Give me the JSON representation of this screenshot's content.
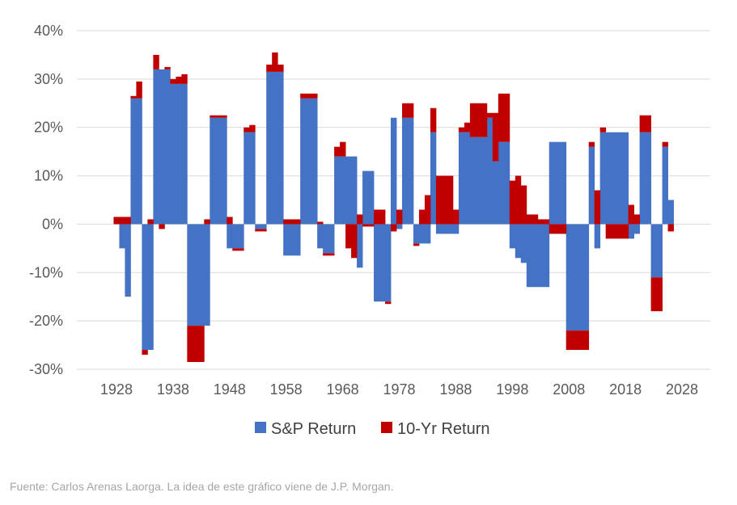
{
  "chart_data": {
    "type": "bar",
    "stacked": true,
    "grid": true,
    "legend_position": "bottom",
    "ylim": [
      -30,
      40
    ],
    "xlim": [
      1921,
      2033
    ],
    "yticks": [
      -30,
      -20,
      -10,
      0,
      10,
      20,
      30,
      40
    ],
    "ytick_labels": [
      "-30%",
      "-20%",
      "-10%",
      "0%",
      "10%",
      "20%",
      "30%",
      "40%"
    ],
    "xticks": [
      1928,
      1938,
      1948,
      1958,
      1968,
      1978,
      1988,
      1998,
      2008,
      2018,
      2028
    ],
    "xtick_labels": [
      "1928",
      "1938",
      "1948",
      "1958",
      "1968",
      "1978",
      "1988",
      "1998",
      "2008",
      "2018",
      "2028"
    ],
    "x": [
      1928,
      1929,
      1930,
      1931,
      1932,
      1933,
      1934,
      1935,
      1936,
      1937,
      1938,
      1939,
      1940,
      1941,
      1942,
      1943,
      1944,
      1945,
      1946,
      1947,
      1948,
      1949,
      1950,
      1951,
      1952,
      1953,
      1954,
      1955,
      1956,
      1957,
      1958,
      1959,
      1960,
      1961,
      1962,
      1963,
      1964,
      1965,
      1966,
      1967,
      1968,
      1969,
      1970,
      1971,
      1972,
      1973,
      1974,
      1975,
      1976,
      1977,
      1978,
      1979,
      1980,
      1981,
      1982,
      1983,
      1984,
      1985,
      1986,
      1987,
      1988,
      1989,
      1990,
      1991,
      1992,
      1993,
      1994,
      1995,
      1996,
      1997,
      1998,
      1999,
      2000,
      2001,
      2002,
      2003,
      2004,
      2005,
      2006,
      2007,
      2008,
      2009,
      2010,
      2011,
      2012,
      2013,
      2014,
      2015,
      2016,
      2017,
      2018,
      2019,
      2020,
      2021,
      2022,
      2023,
      2024,
      2025,
      2026
    ],
    "series": [
      {
        "name": "S&P Return",
        "color": "#4472c4",
        "values": [
          0,
          -5,
          -15,
          26,
          26,
          -26,
          -26,
          32,
          32,
          32,
          29,
          29,
          29,
          -21,
          -21,
          -21,
          -21,
          22,
          22,
          22,
          -5,
          -5,
          -5,
          19,
          19,
          -1,
          -1,
          31.5,
          31.5,
          31.5,
          -6.5,
          -6.5,
          -6.5,
          26,
          26,
          26,
          -5,
          -6,
          -6,
          14,
          14,
          14,
          14,
          -9,
          11,
          11,
          -16,
          -16,
          -16,
          22,
          -1,
          22,
          22,
          -4,
          -4,
          -4,
          19,
          -2,
          -2,
          -2,
          -2,
          19,
          19,
          18,
          18,
          18,
          22,
          13,
          17,
          17,
          -5,
          -7,
          -8,
          -13,
          -13,
          -13,
          -13,
          17,
          17,
          17,
          -22,
          -22,
          -22,
          -22,
          16,
          -5,
          19,
          19,
          19,
          19,
          19,
          -3,
          -2,
          19,
          19,
          -11,
          -11,
          16,
          5
        ]
      },
      {
        "name": "10-Yr Return",
        "color": "#c00000",
        "values": [
          1.5,
          1.5,
          1.5,
          0.5,
          3.5,
          -1,
          1,
          3,
          -1,
          0.5,
          1,
          1.5,
          2,
          -7.5,
          -7.5,
          -7.5,
          1,
          0.5,
          0.5,
          0.5,
          1.5,
          -0.5,
          -0.5,
          1,
          1.5,
          -0.5,
          -0.5,
          1.5,
          4,
          1.5,
          1,
          1,
          1,
          1,
          1,
          1,
          0.5,
          -0.5,
          -0.5,
          2,
          3,
          -5,
          -7,
          2,
          -0.5,
          -0.5,
          3,
          3,
          -0.5,
          -1.5,
          3,
          3,
          3,
          -0.5,
          3,
          6,
          5,
          10,
          10,
          10,
          3,
          1,
          2,
          7,
          7,
          7,
          1,
          10,
          10,
          10,
          9,
          10,
          8,
          2,
          2,
          1,
          1,
          -2,
          -2,
          -2,
          -4,
          -4,
          -4,
          -4,
          1,
          7,
          1,
          -3,
          -3,
          -3,
          -3,
          4,
          2,
          3.5,
          3.5,
          -7,
          -7,
          1,
          -1.5
        ]
      }
    ]
  },
  "source_note": "Fuente: Carlos Arenas Laorga. La idea de este gráfico viene de J.P. Morgan."
}
